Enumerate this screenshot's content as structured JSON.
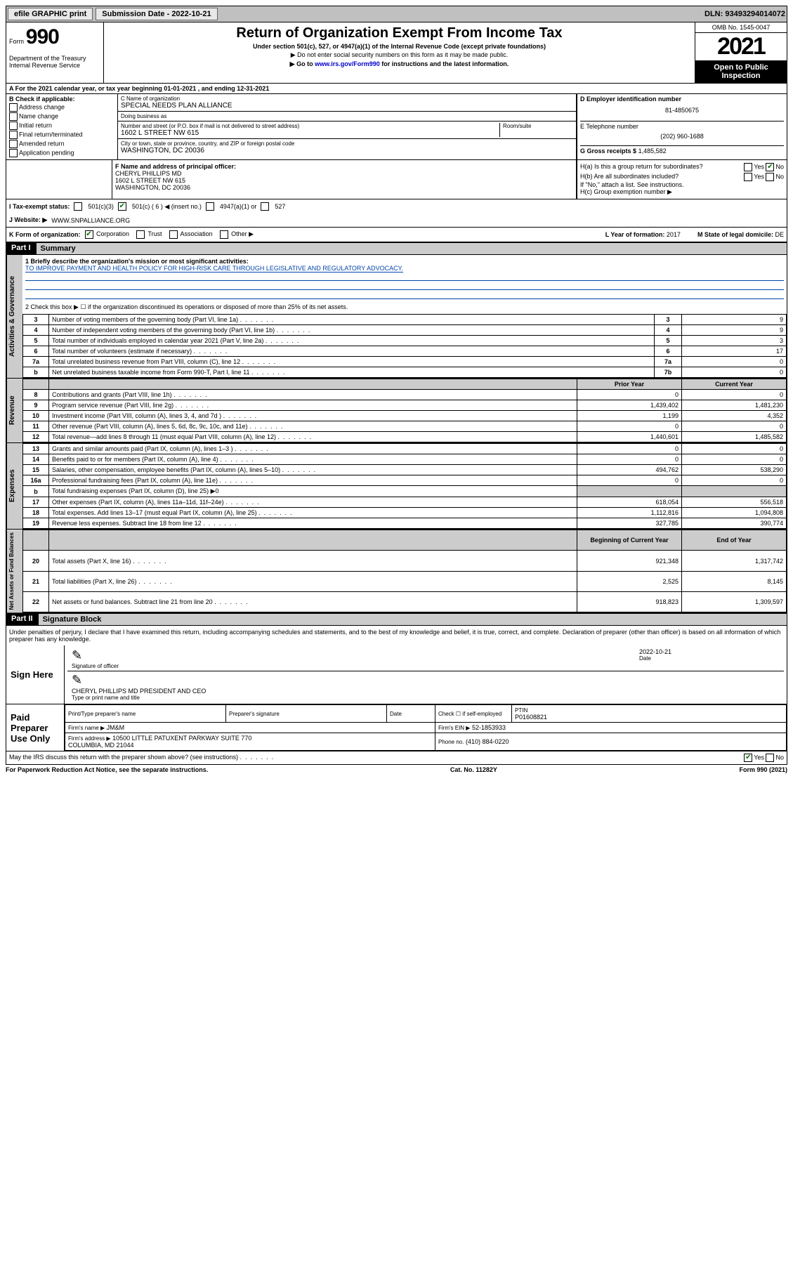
{
  "topbar": {
    "efile": "efile GRAPHIC print",
    "submission_label": "Submission Date - 2022-10-21",
    "dln": "DLN: 93493294014072"
  },
  "header": {
    "form_prefix": "Form",
    "form_number": "990",
    "title": "Return of Organization Exempt From Income Tax",
    "subtitle1": "Under section 501(c), 527, or 4947(a)(1) of the Internal Revenue Code (except private foundations)",
    "subtitle2": "▶ Do not enter social security numbers on this form as it may be made public.",
    "subtitle3_pre": "▶ Go to ",
    "subtitle3_link": "www.irs.gov/Form990",
    "subtitle3_post": " for instructions and the latest information.",
    "dept": "Department of the Treasury\nInternal Revenue Service",
    "omb": "OMB No. 1545-0047",
    "year": "2021",
    "open_public": "Open to Public Inspection"
  },
  "row_a": "A For the 2021 calendar year, or tax year beginning 01-01-2021    , and ending 12-31-2021",
  "col_b": {
    "hdr": "B Check if applicable:",
    "items": [
      "Address change",
      "Name change",
      "Initial return",
      "Final return/terminated",
      "Amended return",
      "Application pending"
    ]
  },
  "col_c": {
    "name_label": "C Name of organization",
    "name": "SPECIAL NEEDS PLAN ALLIANCE",
    "dba_label": "Doing business as",
    "dba": "",
    "street_label": "Number and street (or P.O. box if mail is not delivered to street address)",
    "room_label": "Room/suite",
    "street": "1602 L STREET NW 615",
    "city_label": "City or town, state or province, country, and ZIP or foreign postal code",
    "city": "WASHINGTON, DC  20036"
  },
  "col_d": {
    "ein_label": "D Employer identification number",
    "ein": "81-4850675",
    "phone_label": "E Telephone number",
    "phone": "(202) 960-1688",
    "gross_label": "G Gross receipts $",
    "gross": "1,485,582"
  },
  "row_f": {
    "label": "F Name and address of principal officer:",
    "name": "CHERYL PHILLIPS MD",
    "addr1": "1602 L STREET NW 615",
    "addr2": "WASHINGTON, DC  20036"
  },
  "row_h": {
    "ha": "H(a)  Is this a group return for subordinates?",
    "hb": "H(b)  Are all subordinates included?",
    "hb_note": "If \"No,\" attach a list. See instructions.",
    "hc": "H(c)  Group exemption number ▶"
  },
  "row_i": {
    "label": "I  Tax-exempt status:",
    "opt1": "501(c)(3)",
    "opt2": "501(c) ( 6 ) ◀ (insert no.)",
    "opt3": "4947(a)(1) or",
    "opt4": "527"
  },
  "row_j": {
    "label": "J  Website: ▶",
    "value": "WWW.SNPALLIANCE.ORG"
  },
  "row_k": {
    "label": "K Form of organization:",
    "opts": [
      "Corporation",
      "Trust",
      "Association",
      "Other ▶"
    ],
    "l_label": "L Year of formation:",
    "l_value": "2017",
    "m_label": "M State of legal domicile:",
    "m_value": "DE"
  },
  "part1": {
    "hdr": "Part I",
    "title": "Summary",
    "line1_label": "1  Briefly describe the organization's mission or most significant activities:",
    "line1_text": "TO IMPROVE PAYMENT AND HEALTH POLICY FOR HIGH-RISK CARE THROUGH LEGISLATIVE AND REGULATORY ADVOCACY.",
    "line2": "2  Check this box ▶ ☐  if the organization discontinued its operations or disposed of more than 25% of its net assets.",
    "governance_lines": [
      {
        "num": "3",
        "desc": "Number of voting members of the governing body (Part VI, line 1a)",
        "box": "3",
        "val": "9"
      },
      {
        "num": "4",
        "desc": "Number of independent voting members of the governing body (Part VI, line 1b)",
        "box": "4",
        "val": "9"
      },
      {
        "num": "5",
        "desc": "Total number of individuals employed in calendar year 2021 (Part V, line 2a)",
        "box": "5",
        "val": "3"
      },
      {
        "num": "6",
        "desc": "Total number of volunteers (estimate if necessary)",
        "box": "6",
        "val": "17"
      },
      {
        "num": "7a",
        "desc": "Total unrelated business revenue from Part VIII, column (C), line 12",
        "box": "7a",
        "val": "0"
      },
      {
        "num": "b",
        "desc": "Net unrelated business taxable income from Form 990-T, Part I, line 11",
        "box": "7b",
        "val": "0"
      }
    ],
    "col_prior": "Prior Year",
    "col_current": "Current Year",
    "revenue_lines": [
      {
        "num": "8",
        "desc": "Contributions and grants (Part VIII, line 1h)",
        "prior": "0",
        "curr": "0"
      },
      {
        "num": "9",
        "desc": "Program service revenue (Part VIII, line 2g)",
        "prior": "1,439,402",
        "curr": "1,481,230"
      },
      {
        "num": "10",
        "desc": "Investment income (Part VIII, column (A), lines 3, 4, and 7d )",
        "prior": "1,199",
        "curr": "4,352"
      },
      {
        "num": "11",
        "desc": "Other revenue (Part VIII, column (A), lines 5, 6d, 8c, 9c, 10c, and 11e)",
        "prior": "0",
        "curr": "0"
      },
      {
        "num": "12",
        "desc": "Total revenue—add lines 8 through 11 (must equal Part VIII, column (A), line 12)",
        "prior": "1,440,601",
        "curr": "1,485,582"
      }
    ],
    "expense_lines": [
      {
        "num": "13",
        "desc": "Grants and similar amounts paid (Part IX, column (A), lines 1–3 )",
        "prior": "0",
        "curr": "0"
      },
      {
        "num": "14",
        "desc": "Benefits paid to or for members (Part IX, column (A), line 4)",
        "prior": "0",
        "curr": "0"
      },
      {
        "num": "15",
        "desc": "Salaries, other compensation, employee benefits (Part IX, column (A), lines 5–10)",
        "prior": "494,762",
        "curr": "538,290"
      },
      {
        "num": "16a",
        "desc": "Professional fundraising fees (Part IX, column (A), line 11e)",
        "prior": "0",
        "curr": "0"
      },
      {
        "num": "b",
        "desc": "Total fundraising expenses (Part IX, column (D), line 25) ▶0",
        "prior": "",
        "curr": ""
      },
      {
        "num": "17",
        "desc": "Other expenses (Part IX, column (A), lines 11a–11d, 11f–24e)",
        "prior": "618,054",
        "curr": "556,518"
      },
      {
        "num": "18",
        "desc": "Total expenses. Add lines 13–17 (must equal Part IX, column (A), line 25)",
        "prior": "1,112,816",
        "curr": "1,094,808"
      },
      {
        "num": "19",
        "desc": "Revenue less expenses. Subtract line 18 from line 12",
        "prior": "327,785",
        "curr": "390,774"
      }
    ],
    "col_begin": "Beginning of Current Year",
    "col_end": "End of Year",
    "netassets_lines": [
      {
        "num": "20",
        "desc": "Total assets (Part X, line 16)",
        "prior": "921,348",
        "curr": "1,317,742"
      },
      {
        "num": "21",
        "desc": "Total liabilities (Part X, line 26)",
        "prior": "2,525",
        "curr": "8,145"
      },
      {
        "num": "22",
        "desc": "Net assets or fund balances. Subtract line 21 from line 20",
        "prior": "918,823",
        "curr": "1,309,597"
      }
    ]
  },
  "part2": {
    "hdr": "Part II",
    "title": "Signature Block",
    "penalty": "Under penalties of perjury, I declare that I have examined this return, including accompanying schedules and statements, and to the best of my knowledge and belief, it is true, correct, and complete. Declaration of preparer (other than officer) is based on all information of which preparer has any knowledge.",
    "sign_here": "Sign Here",
    "sig_officer": "Signature of officer",
    "sig_date": "2022-10-21",
    "date_label": "Date",
    "sig_name": "CHERYL PHILLIPS MD PRESIDENT AND CEO",
    "sig_name_label": "Type or print name and title",
    "paid_prep": "Paid Preparer Use Only",
    "prep_name_label": "Print/Type preparer's name",
    "prep_sig_label": "Preparer's signature",
    "prep_date_label": "Date",
    "prep_check": "Check ☐ if self-employed",
    "ptin_label": "PTIN",
    "ptin": "P01608821",
    "firm_name_label": "Firm's name    ▶",
    "firm_name": "JM&M",
    "firm_ein_label": "Firm's EIN ▶",
    "firm_ein": "52-1853933",
    "firm_addr_label": "Firm's address ▶",
    "firm_addr": "10500 LITTLE PATUXENT PARKWAY SUITE 770\nCOLUMBIA, MD  21044",
    "firm_phone_label": "Phone no.",
    "firm_phone": "(410) 884-0220",
    "discuss": "May the IRS discuss this return with the preparer shown above? (see instructions)",
    "yes": "Yes",
    "no": "No"
  },
  "footer": {
    "left": "For Paperwork Reduction Act Notice, see the separate instructions.",
    "mid": "Cat. No. 11282Y",
    "right": "Form 990 (2021)"
  }
}
